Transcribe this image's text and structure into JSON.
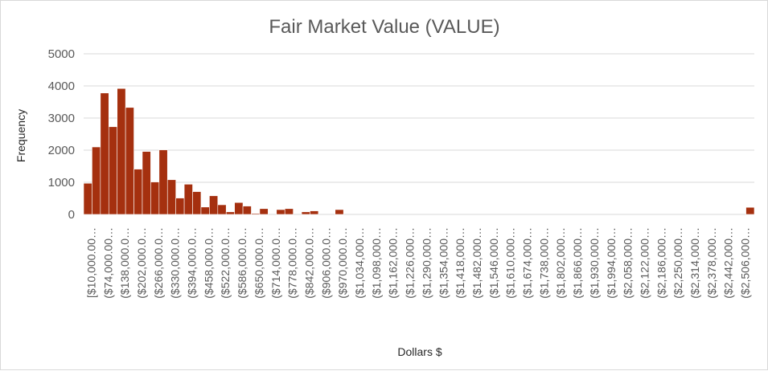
{
  "chart_data": {
    "type": "bar",
    "title": "Fair Market Value (VALUE)",
    "xlabel": "Dollars $",
    "ylabel": "Frequency",
    "ylim": [
      0,
      5000
    ],
    "yticks": [
      "0",
      "1000",
      "2000",
      "3000",
      "4000",
      "5000"
    ],
    "grid": true,
    "bar_color": "#a5300f",
    "tick_labels": [
      "[$10,000.00…",
      "($74,000.00…",
      "($138,000.0…",
      "($202,000.0…",
      "($266,000.0…",
      "($330,000.0…",
      "($394,000.0…",
      "($458,000.0…",
      "($522,000.0…",
      "($586,000.0…",
      "($650,000.0…",
      "($714,000.0…",
      "($778,000.0…",
      "($842,000.0…",
      "($906,000.0…",
      "($970,000.0…",
      "($1,034,000…",
      "($1,098,000…",
      "($1,162,000…",
      "($1,226,000…",
      "($1,290,000…",
      "($1,354,000…",
      "($1,418,000…",
      "($1,482,000…",
      "($1,546,000…",
      "($1,610,000…",
      "($1,674,000…",
      "($1,738,000…",
      "($1,802,000…",
      "($1,866,000…",
      "($1,930,000…",
      "($1,994,000…",
      "($2,058,000…",
      "($2,122,000…",
      "($2,186,000…",
      "($2,250,000…",
      "($2,314,000…",
      "($2,378,000…",
      "($2,442,000…",
      "($2,506,000…"
    ],
    "bin_start": 10000,
    "bin_width": 32000,
    "values": [
      970,
      2100,
      3780,
      2730,
      3920,
      3330,
      1410,
      1960,
      1010,
      2010,
      1080,
      510,
      940,
      710,
      230,
      580,
      300,
      80,
      370,
      260,
      30,
      180,
      0,
      150,
      180,
      0,
      80,
      110,
      0,
      0,
      150,
      0,
      0,
      0,
      0,
      0,
      0,
      0,
      0,
      0,
      0,
      0,
      0,
      0,
      0,
      0,
      0,
      0,
      0,
      0,
      0,
      0,
      0,
      0,
      0,
      0,
      0,
      0,
      0,
      0,
      0,
      0,
      0,
      0,
      0,
      0,
      0,
      0,
      0,
      0,
      0,
      0,
      0,
      0,
      0,
      0,
      0,
      0,
      0,
      220
    ]
  }
}
